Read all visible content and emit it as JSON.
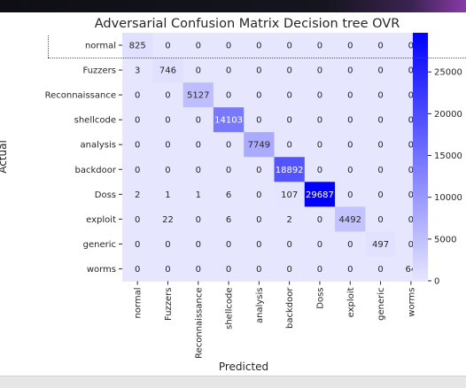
{
  "chart_data": {
    "type": "heatmap",
    "title": "Adversarial Confusion Matrix Decision tree OVR",
    "xlabel": "Predicted",
    "ylabel": "Actual",
    "row_labels": [
      "normal",
      "Fuzzers",
      "Reconnaissance",
      "shellcode",
      "analysis",
      "backdoor",
      "Doss",
      "exploit",
      "generic",
      "worms"
    ],
    "col_labels": [
      "normal",
      "Fuzzers",
      "Reconnaissance",
      "shellcode",
      "analysis",
      "backdoor",
      "Doss",
      "exploit",
      "generic",
      "worms"
    ],
    "values": [
      [
        825,
        0,
        0,
        0,
        0,
        0,
        0,
        0,
        0,
        0
      ],
      [
        3,
        746,
        0,
        0,
        0,
        0,
        0,
        0,
        0,
        0
      ],
      [
        0,
        0,
        5127,
        0,
        0,
        0,
        0,
        0,
        0,
        0
      ],
      [
        0,
        0,
        0,
        14103,
        0,
        0,
        0,
        0,
        0,
        0
      ],
      [
        0,
        0,
        0,
        0,
        7749,
        0,
        0,
        0,
        0,
        0
      ],
      [
        0,
        0,
        0,
        0,
        0,
        18892,
        0,
        0,
        0,
        0
      ],
      [
        2,
        1,
        1,
        6,
        0,
        107,
        29687,
        0,
        0,
        0
      ],
      [
        0,
        22,
        0,
        6,
        0,
        2,
        0,
        4492,
        0,
        0
      ],
      [
        0,
        0,
        0,
        0,
        0,
        0,
        0,
        0,
        497,
        0
      ],
      [
        0,
        0,
        0,
        0,
        0,
        0,
        0,
        0,
        0,
        64
      ]
    ],
    "vmin": 0,
    "vmax": 29687,
    "colorbar_ticks": [
      0,
      5000,
      10000,
      15000,
      20000,
      25000
    ],
    "colormap": "bwr-blue",
    "colors": {
      "low": "#e6e6ff",
      "high": "#0000ff",
      "text_dark": "#262626",
      "text_light": "#ffffff"
    },
    "legend_placement": "right",
    "grid": false
  }
}
